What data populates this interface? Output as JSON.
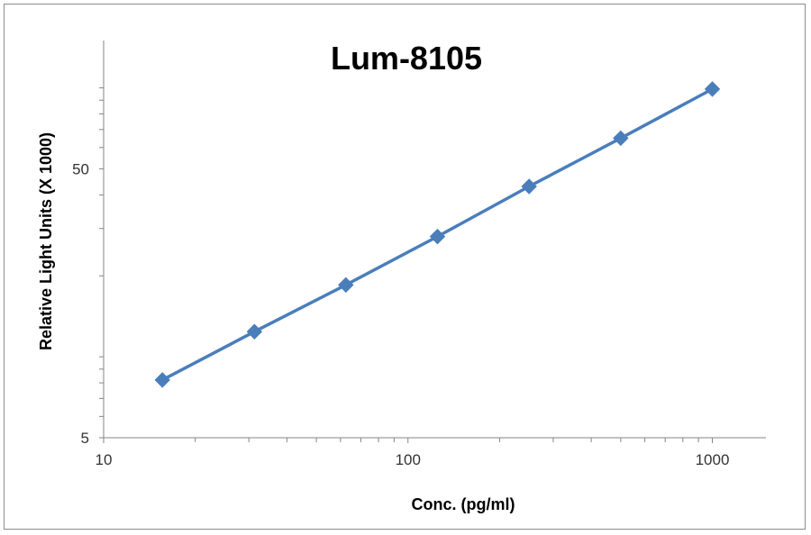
{
  "chart_data": {
    "type": "scatter",
    "title": "Lum-8105",
    "xlabel": "Conc. (pg/ml)",
    "ylabel": "Relative Light Units (X 1000)",
    "x_scale": "log",
    "y_scale": "log",
    "xlim": [
      10,
      1500
    ],
    "ylim": [
      5,
      150
    ],
    "x_ticks": [
      {
        "value": 10,
        "label": "10"
      },
      {
        "value": 100,
        "label": "100"
      },
      {
        "value": 1000,
        "label": "1000"
      }
    ],
    "y_ticks": [
      {
        "value": 5,
        "label": "5"
      },
      {
        "value": 50,
        "label": "50"
      }
    ],
    "grid": false,
    "legend": "none",
    "series": [
      {
        "marker": "diamond",
        "line": "straight",
        "color": "#4a7ebb",
        "x": [
          15.6,
          31.3,
          62.5,
          125,
          250,
          500,
          1000
        ],
        "y": [
          8.2,
          12.4,
          18.5,
          28,
          43,
          65,
          99
        ]
      }
    ]
  }
}
